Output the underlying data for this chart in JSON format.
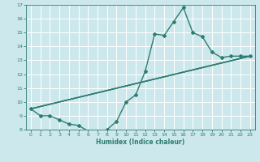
{
  "title": "",
  "xlabel": "Humidex (Indice chaleur)",
  "ylabel": "",
  "xlim": [
    -0.5,
    23.5
  ],
  "ylim": [
    8,
    17
  ],
  "xticks": [
    0,
    1,
    2,
    3,
    4,
    5,
    6,
    7,
    8,
    9,
    10,
    11,
    12,
    13,
    14,
    15,
    16,
    17,
    18,
    19,
    20,
    21,
    22,
    23
  ],
  "yticks": [
    8,
    9,
    10,
    11,
    12,
    13,
    14,
    15,
    16,
    17
  ],
  "bg_color": "#cce8ec",
  "grid_color": "#ffffff",
  "line_color": "#2e7d72",
  "lines": [
    {
      "x": [
        0,
        1,
        2,
        3,
        4,
        5,
        6,
        7,
        8,
        9,
        10,
        11,
        12,
        13,
        14,
        15,
        16,
        17,
        18,
        19,
        20,
        21,
        22,
        23
      ],
      "y": [
        9.5,
        9.0,
        9.0,
        8.7,
        8.4,
        8.3,
        7.9,
        7.7,
        8.0,
        8.6,
        10.0,
        10.5,
        12.2,
        14.9,
        14.8,
        15.8,
        16.8,
        15.0,
        14.7,
        13.6,
        13.2,
        13.3,
        13.3,
        13.3
      ],
      "marker": "D",
      "markersize": 2.0,
      "linewidth": 1.0,
      "has_marker": true
    },
    {
      "x": [
        0,
        23
      ],
      "y": [
        9.5,
        13.3
      ],
      "marker": null,
      "markersize": 0,
      "linewidth": 1.0,
      "has_marker": false
    },
    {
      "x": [
        0,
        23
      ],
      "y": [
        9.5,
        13.3
      ],
      "marker": null,
      "markersize": 0,
      "linewidth": 1.0,
      "has_marker": false
    },
    {
      "x": [
        0,
        23
      ],
      "y": [
        9.5,
        13.3
      ],
      "marker": null,
      "markersize": 0,
      "linewidth": 1.0,
      "has_marker": false
    }
  ]
}
